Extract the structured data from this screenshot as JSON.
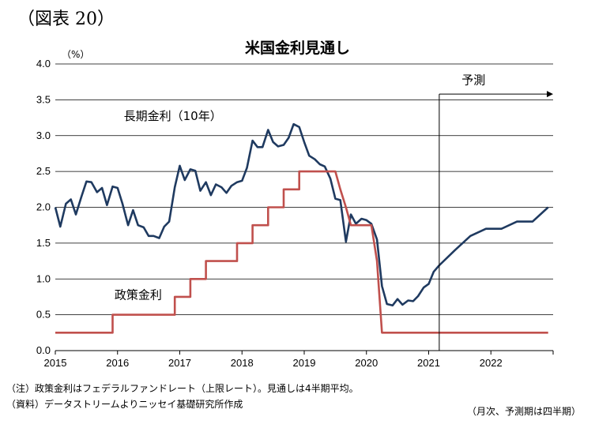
{
  "figure_label": "（図表 20）",
  "unit_label": "（%）",
  "notes": {
    "note1": "（注）政策金利はフェデラルファンドレート（上限レート）。見通しは4半期平均。",
    "note2": "（資料）データストリームよりニッセイ基礎研究所作成",
    "note3": "（月次、予測期は四半期）"
  },
  "colors": {
    "long_rate": "#1f3a60",
    "policy_rate": "#c0504d"
  },
  "chart_data": {
    "type": "line",
    "title": "米国金利見通し",
    "ylim": [
      0,
      4.0
    ],
    "xlim": [
      2015.0,
      2023.0
    ],
    "grid": true,
    "y_ticks": [
      "0.0",
      "0.5",
      "1.0",
      "1.5",
      "2.0",
      "2.5",
      "3.0",
      "3.5",
      "4.0"
    ],
    "x_ticks": [
      "2015",
      "2016",
      "2017",
      "2018",
      "2019",
      "2020",
      "2021",
      "2022"
    ],
    "forecast_label": "予測",
    "forecast_start": 2021.17,
    "series": [
      {
        "name": "長期金利（10年）",
        "points": [
          [
            2015.0,
            2.0
          ],
          [
            2015.08,
            1.73
          ],
          [
            2015.17,
            2.05
          ],
          [
            2015.25,
            2.11
          ],
          [
            2015.33,
            1.9
          ],
          [
            2015.42,
            2.15
          ],
          [
            2015.5,
            2.36
          ],
          [
            2015.58,
            2.35
          ],
          [
            2015.67,
            2.21
          ],
          [
            2015.75,
            2.27
          ],
          [
            2015.83,
            2.03
          ],
          [
            2015.92,
            2.29
          ],
          [
            2016.0,
            2.27
          ],
          [
            2016.08,
            2.05
          ],
          [
            2016.17,
            1.75
          ],
          [
            2016.25,
            1.96
          ],
          [
            2016.33,
            1.75
          ],
          [
            2016.42,
            1.72
          ],
          [
            2016.5,
            1.6
          ],
          [
            2016.58,
            1.6
          ],
          [
            2016.67,
            1.57
          ],
          [
            2016.75,
            1.73
          ],
          [
            2016.83,
            1.8
          ],
          [
            2016.92,
            2.28
          ],
          [
            2017.0,
            2.58
          ],
          [
            2017.08,
            2.38
          ],
          [
            2017.17,
            2.53
          ],
          [
            2017.25,
            2.51
          ],
          [
            2017.33,
            2.23
          ],
          [
            2017.42,
            2.35
          ],
          [
            2017.5,
            2.17
          ],
          [
            2017.58,
            2.32
          ],
          [
            2017.67,
            2.28
          ],
          [
            2017.75,
            2.2
          ],
          [
            2017.83,
            2.3
          ],
          [
            2017.92,
            2.35
          ],
          [
            2018.0,
            2.37
          ],
          [
            2018.08,
            2.55
          ],
          [
            2018.17,
            2.93
          ],
          [
            2018.25,
            2.84
          ],
          [
            2018.33,
            2.84
          ],
          [
            2018.42,
            3.08
          ],
          [
            2018.5,
            2.91
          ],
          [
            2018.58,
            2.85
          ],
          [
            2018.67,
            2.87
          ],
          [
            2018.75,
            2.97
          ],
          [
            2018.83,
            3.16
          ],
          [
            2018.92,
            3.12
          ],
          [
            2019.0,
            2.91
          ],
          [
            2019.08,
            2.72
          ],
          [
            2019.17,
            2.67
          ],
          [
            2019.25,
            2.6
          ],
          [
            2019.33,
            2.57
          ],
          [
            2019.42,
            2.4
          ],
          [
            2019.5,
            2.12
          ],
          [
            2019.58,
            2.1
          ],
          [
            2019.67,
            1.52
          ],
          [
            2019.75,
            1.9
          ],
          [
            2019.83,
            1.77
          ],
          [
            2019.92,
            1.84
          ],
          [
            2020.0,
            1.82
          ],
          [
            2020.08,
            1.77
          ],
          [
            2020.17,
            1.55
          ],
          [
            2020.25,
            0.9
          ],
          [
            2020.33,
            0.65
          ],
          [
            2020.42,
            0.63
          ],
          [
            2020.5,
            0.72
          ],
          [
            2020.58,
            0.64
          ],
          [
            2020.67,
            0.7
          ],
          [
            2020.75,
            0.69
          ],
          [
            2020.83,
            0.76
          ],
          [
            2020.92,
            0.88
          ],
          [
            2021.0,
            0.93
          ],
          [
            2021.08,
            1.1
          ],
          [
            2021.17,
            1.19
          ],
          [
            2021.42,
            1.4
          ],
          [
            2021.67,
            1.6
          ],
          [
            2021.92,
            1.7
          ],
          [
            2022.17,
            1.7
          ],
          [
            2022.42,
            1.8
          ],
          [
            2022.67,
            1.8
          ],
          [
            2022.92,
            2.0
          ]
        ]
      },
      {
        "name": "政策金利",
        "points": [
          [
            2015.0,
            0.25
          ],
          [
            2015.92,
            0.25
          ],
          [
            2015.92,
            0.5
          ],
          [
            2016.92,
            0.5
          ],
          [
            2016.92,
            0.75
          ],
          [
            2017.17,
            0.75
          ],
          [
            2017.17,
            1.0
          ],
          [
            2017.42,
            1.0
          ],
          [
            2017.42,
            1.25
          ],
          [
            2017.92,
            1.25
          ],
          [
            2017.92,
            1.5
          ],
          [
            2018.17,
            1.5
          ],
          [
            2018.17,
            1.75
          ],
          [
            2018.42,
            1.75
          ],
          [
            2018.42,
            2.0
          ],
          [
            2018.67,
            2.0
          ],
          [
            2018.67,
            2.25
          ],
          [
            2018.92,
            2.25
          ],
          [
            2018.92,
            2.5
          ],
          [
            2019.5,
            2.5
          ],
          [
            2019.58,
            2.25
          ],
          [
            2019.67,
            2.0
          ],
          [
            2019.75,
            1.75
          ],
          [
            2020.08,
            1.75
          ],
          [
            2020.17,
            1.25
          ],
          [
            2020.25,
            0.25
          ],
          [
            2022.92,
            0.25
          ]
        ]
      }
    ],
    "series_labels": [
      "長期金利（10年）",
      "政策金利"
    ]
  }
}
